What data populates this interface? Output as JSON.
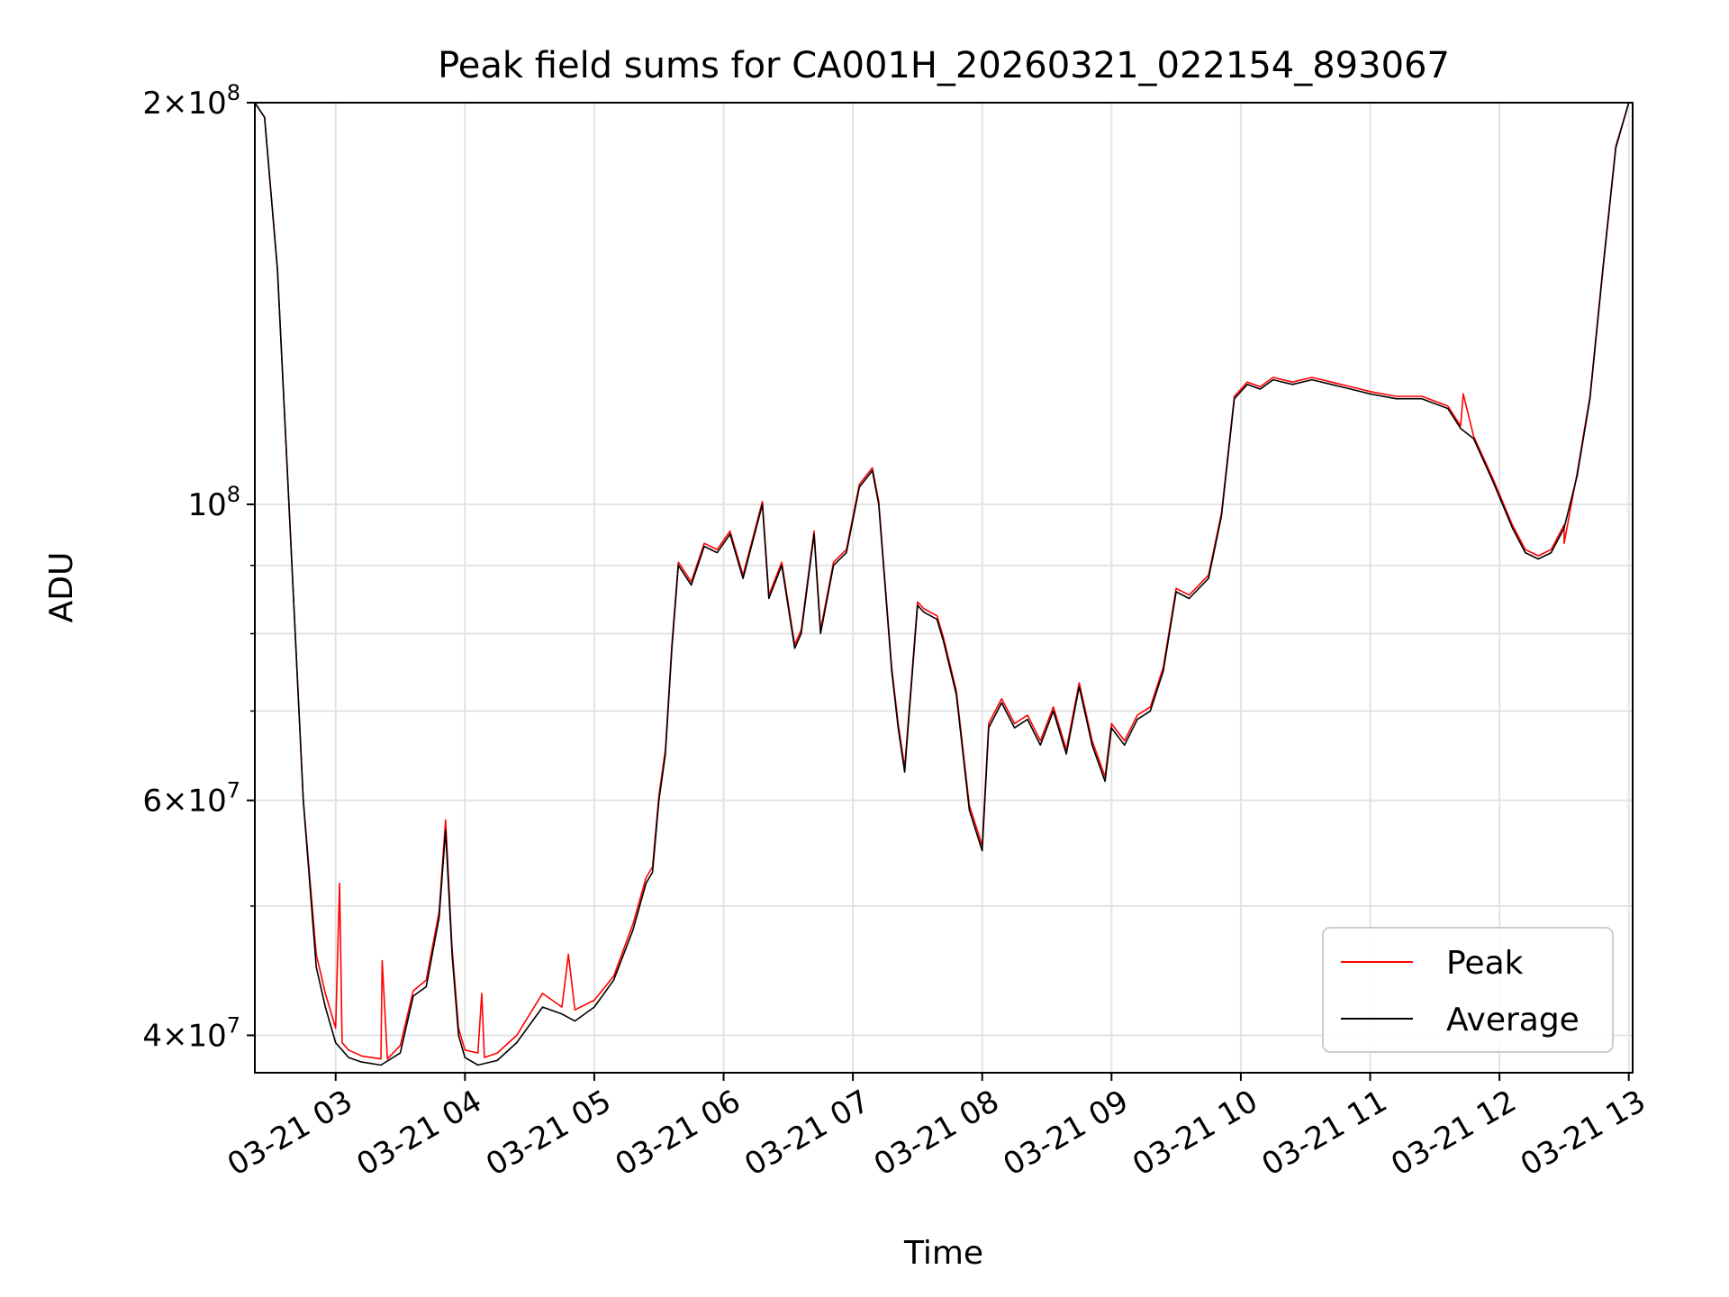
{
  "chart_data": {
    "type": "line",
    "title": "Peak field sums for CA001H_20260321_022154_893067",
    "xlabel": "Time",
    "ylabel": "ADU",
    "x_ticks": [
      "03-21 03",
      "03-21 04",
      "03-21 05",
      "03-21 06",
      "03-21 07",
      "03-21 08",
      "03-21 09",
      "03-21 10",
      "03-21 11",
      "03-21 12",
      "03-21 13"
    ],
    "x_tick_hours": [
      3,
      4,
      5,
      6,
      7,
      8,
      9,
      10,
      11,
      12,
      13
    ],
    "x_unit": "hour of day, 2026-03-21",
    "xlim": [
      2.375,
      13.03
    ],
    "y_scale": "log",
    "ylim": [
      37500000,
      200000000
    ],
    "y_ticks": [
      {
        "value": 40000000,
        "mantissa": "4",
        "exponent": "7"
      },
      {
        "value": 60000000,
        "mantissa": "6",
        "exponent": "7"
      },
      {
        "value": 100000000,
        "mantissa": "",
        "exponent": "8"
      },
      {
        "value": 200000000,
        "mantissa": "2",
        "exponent": "8"
      }
    ],
    "y_minor_ticks": [
      50000000,
      70000000,
      80000000,
      90000000
    ],
    "grid": true,
    "legend_position": "lower-right",
    "series": [
      {
        "name": "Average",
        "color": "#000000",
        "x": [
          2.375,
          2.45,
          2.55,
          2.65,
          2.75,
          2.85,
          2.92,
          3.0,
          3.1,
          3.2,
          3.35,
          3.5,
          3.6,
          3.7,
          3.8,
          3.85,
          3.9,
          3.95,
          4.0,
          4.1,
          4.25,
          4.4,
          4.6,
          4.75,
          4.85,
          5.0,
          5.15,
          5.3,
          5.4,
          5.45,
          5.5,
          5.55,
          5.6,
          5.65,
          5.75,
          5.85,
          5.95,
          6.05,
          6.15,
          6.3,
          6.35,
          6.45,
          6.55,
          6.6,
          6.7,
          6.75,
          6.85,
          6.95,
          7.05,
          7.15,
          7.2,
          7.3,
          7.35,
          7.4,
          7.5,
          7.55,
          7.65,
          7.7,
          7.8,
          7.9,
          8.0,
          8.05,
          8.15,
          8.25,
          8.35,
          8.45,
          8.55,
          8.65,
          8.75,
          8.85,
          8.95,
          9.0,
          9.1,
          9.2,
          9.3,
          9.4,
          9.5,
          9.6,
          9.65,
          9.75,
          9.85,
          9.95,
          10.05,
          10.15,
          10.25,
          10.4,
          10.55,
          10.7,
          10.85,
          11.0,
          11.2,
          11.4,
          11.6,
          11.7,
          11.8,
          11.95,
          12.1,
          12.2,
          12.3,
          12.4,
          12.5,
          12.6,
          12.7,
          12.8,
          12.9,
          13.0,
          13.03
        ],
        "values": [
          200000000,
          195000000,
          150000000,
          95000000,
          60000000,
          45000000,
          42000000,
          39500000,
          38500000,
          38200000,
          38000000,
          38800000,
          42800000,
          43500000,
          49000000,
          57000000,
          46000000,
          40000000,
          38500000,
          38000000,
          38300000,
          39500000,
          42000000,
          41500000,
          41000000,
          42000000,
          44000000,
          48000000,
          52000000,
          53000000,
          60000000,
          65000000,
          78000000,
          90000000,
          87000000,
          93000000,
          92000000,
          95000000,
          88000000,
          100000000,
          85000000,
          90000000,
          78000000,
          80000000,
          95000000,
          80000000,
          90000000,
          92000000,
          103000000,
          106000000,
          100000000,
          75000000,
          68000000,
          63000000,
          84000000,
          83000000,
          82000000,
          79000000,
          72000000,
          59000000,
          55000000,
          68000000,
          71000000,
          68000000,
          69000000,
          66000000,
          70000000,
          65000000,
          73000000,
          66000000,
          62000000,
          68000000,
          66000000,
          69000000,
          70000000,
          75000000,
          86000000,
          85000000,
          86000000,
          88000000,
          98000000,
          120000000,
          123000000,
          122000000,
          124000000,
          123000000,
          124000000,
          123000000,
          122000000,
          121000000,
          120000000,
          120000000,
          118000000,
          114000000,
          112000000,
          104000000,
          96000000,
          92000000,
          91000000,
          92000000,
          96000000,
          105000000,
          120000000,
          150000000,
          185000000,
          200000000,
          200000000
        ]
      },
      {
        "name": "Peak",
        "color": "#ff0000",
        "x": [
          2.375,
          2.45,
          2.55,
          2.65,
          2.75,
          2.85,
          2.92,
          3.0,
          3.03,
          3.05,
          3.1,
          3.2,
          3.35,
          3.36,
          3.4,
          3.5,
          3.6,
          3.7,
          3.8,
          3.85,
          3.9,
          3.95,
          4.0,
          4.1,
          4.13,
          4.15,
          4.25,
          4.4,
          4.6,
          4.75,
          4.8,
          4.85,
          5.0,
          5.15,
          5.3,
          5.4,
          5.45,
          5.5,
          5.55,
          5.6,
          5.65,
          5.75,
          5.85,
          5.95,
          6.05,
          6.15,
          6.3,
          6.35,
          6.45,
          6.55,
          6.6,
          6.7,
          6.75,
          6.85,
          6.95,
          7.05,
          7.15,
          7.2,
          7.3,
          7.35,
          7.4,
          7.5,
          7.55,
          7.65,
          7.7,
          7.8,
          7.9,
          8.0,
          8.05,
          8.15,
          8.25,
          8.35,
          8.45,
          8.55,
          8.65,
          8.75,
          8.85,
          8.95,
          9.0,
          9.1,
          9.2,
          9.3,
          9.4,
          9.5,
          9.6,
          9.65,
          9.75,
          9.85,
          9.95,
          10.05,
          10.15,
          10.25,
          10.4,
          10.55,
          10.7,
          10.85,
          11.0,
          11.2,
          11.4,
          11.6,
          11.7,
          11.72,
          11.8,
          11.95,
          12.1,
          12.2,
          12.3,
          12.4,
          12.5,
          12.5,
          12.6,
          12.7,
          12.8,
          12.9,
          13.0,
          13.03
        ],
        "values": [
          200000000,
          195000000,
          150000000,
          95000000,
          60000000,
          46000000,
          43000000,
          40500000,
          52000000,
          39500000,
          39000000,
          38600000,
          38400000,
          45500000,
          38400000,
          39300000,
          43200000,
          44000000,
          49500000,
          58000000,
          46500000,
          40500000,
          39000000,
          38800000,
          43000000,
          38500000,
          38800000,
          40000000,
          43000000,
          42000000,
          46000000,
          41800000,
          42500000,
          44300000,
          48500000,
          52500000,
          53500000,
          60500000,
          65500000,
          78500000,
          90500000,
          87500000,
          93500000,
          92500000,
          95500000,
          88500000,
          100500000,
          85500000,
          90500000,
          78500000,
          80500000,
          95500000,
          80500000,
          90500000,
          92500000,
          103500000,
          106500000,
          100500000,
          75500000,
          68500000,
          63500000,
          84500000,
          83500000,
          82500000,
          79500000,
          72500000,
          59500000,
          55500000,
          68500000,
          71500000,
          68500000,
          69500000,
          66500000,
          70500000,
          65500000,
          73500000,
          66500000,
          62500000,
          68500000,
          66500000,
          69500000,
          70500000,
          75500000,
          86500000,
          85500000,
          86500000,
          88500000,
          98500000,
          120500000,
          123500000,
          122500000,
          124500000,
          123500000,
          124500000,
          123500000,
          122500000,
          121500000,
          120500000,
          120500000,
          118500000,
          114500000,
          121000000,
          112500000,
          104500000,
          96500000,
          92500000,
          91500000,
          92500000,
          96500000,
          93500000,
          105500000,
          120500000,
          150500000,
          185500000,
          200000000,
          200000000
        ]
      }
    ]
  }
}
